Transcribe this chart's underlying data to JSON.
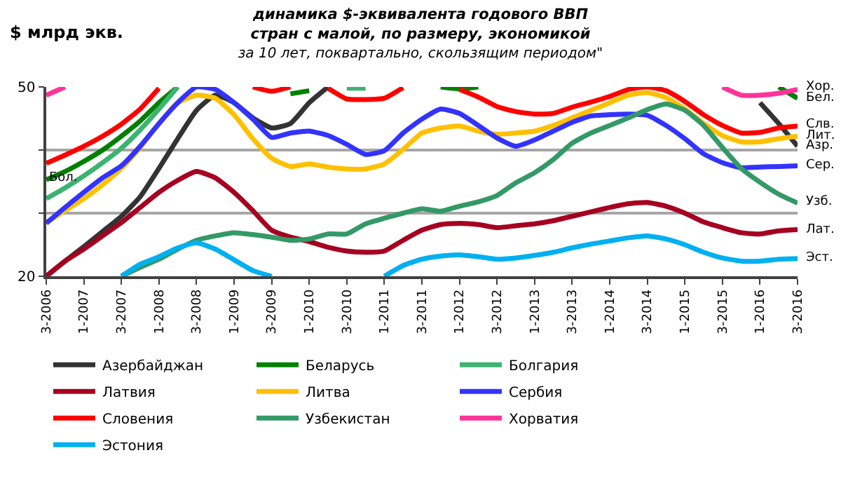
{
  "chart_data": {
    "type": "line",
    "title": "динамика $-эквивалента годового ВВП\nстран с малой, по размеру, экономикой",
    "subtitle": "за 10 лет, поквартально, скользящим периодом\"",
    "ylabel": "$ млрд экв.",
    "categories": [
      "3-2006",
      null,
      "1-2007",
      null,
      "3-2007",
      null,
      "1-2008",
      null,
      "3-2008",
      null,
      "1-2009",
      null,
      "3-2009",
      null,
      "1-2010",
      null,
      "3-2010",
      null,
      "1-2011",
      null,
      "3-2011",
      null,
      "1-2012",
      null,
      "3-2012",
      null,
      "1-2013",
      null,
      "3-2013",
      null,
      "1-2014",
      null,
      "3-2014",
      null,
      "1-2015",
      null,
      "3-2015",
      null,
      "1-2016",
      null,
      "3-2016"
    ],
    "ylim": [
      20,
      50
    ],
    "yticks": [
      20,
      {
        "value": 30,
        "label": null
      },
      {
        "value": 40,
        "label": null
      },
      50
    ],
    "grid": "y",
    "legend": "bottom",
    "marker": "none",
    "line_style": "solid",
    "series": [
      {
        "name": "Азербайджан",
        "color": "#333333",
        "values": [
          20.0,
          22.4,
          24.7,
          27.1,
          29.5,
          32.6,
          37.1,
          41.8,
          46.3,
          48.7,
          47.5,
          45.1,
          43.5,
          44.2,
          47.5,
          50.0,
          null,
          null,
          null,
          null,
          null,
          null,
          null,
          null,
          null,
          null,
          null,
          null,
          null,
          null,
          null,
          null,
          null,
          null,
          null,
          null,
          null,
          null,
          47.5,
          44.2,
          40.6
        ]
      },
      {
        "name": "Беларусь",
        "color": "#008000",
        "values": [
          35.3,
          36.6,
          38.2,
          40.0,
          42.2,
          44.6,
          47.5,
          50.0,
          null,
          null,
          null,
          null,
          null,
          48.9,
          49.4,
          null,
          null,
          null,
          null,
          null,
          null,
          50.0,
          49.7,
          50.0,
          null,
          null,
          null,
          null,
          null,
          null,
          null,
          null,
          null,
          null,
          null,
          null,
          null,
          null,
          null,
          50.0,
          48.2
        ]
      },
      {
        "name": "Болгария",
        "color": "#3cb371",
        "values": [
          32.3,
          34.0,
          35.9,
          38.0,
          40.3,
          43.2,
          46.5,
          50.0,
          null,
          null,
          null,
          null,
          null,
          null,
          null,
          null,
          49.8,
          49.8,
          null,
          null,
          null,
          null,
          null,
          null,
          null,
          null,
          null,
          null,
          null,
          null,
          null,
          null,
          null,
          null,
          null,
          null,
          null,
          null,
          null,
          null,
          null
        ]
      },
      {
        "name": "Латвия",
        "color": "#a50021",
        "values": [
          20.0,
          22.4,
          24.3,
          26.4,
          28.5,
          30.9,
          33.3,
          35.2,
          36.6,
          35.6,
          33.3,
          30.4,
          27.3,
          26.2,
          25.5,
          24.6,
          24.0,
          23.8,
          24.0,
          25.7,
          27.3,
          28.2,
          28.4,
          28.2,
          27.7,
          28.0,
          28.3,
          28.8,
          29.5,
          30.2,
          30.9,
          31.5,
          31.7,
          31.1,
          30.0,
          28.6,
          27.7,
          26.9,
          26.7,
          27.2,
          27.4
        ]
      },
      {
        "name": "Литва",
        "color": "#ffc000",
        "values": [
          28.5,
          30.4,
          32.3,
          34.5,
          37.1,
          40.4,
          44.2,
          47.5,
          48.7,
          48.2,
          45.6,
          41.8,
          38.7,
          37.4,
          37.8,
          37.3,
          37.0,
          37.0,
          37.8,
          40.1,
          42.7,
          43.5,
          43.8,
          43.0,
          42.5,
          42.7,
          43.0,
          43.9,
          45.1,
          46.3,
          47.5,
          48.7,
          49.1,
          48.3,
          46.5,
          44.2,
          42.3,
          41.3,
          41.3,
          41.8,
          42.2
        ]
      },
      {
        "name": "Сербия",
        "color": "#3333ff",
        "values": [
          28.4,
          30.9,
          33.3,
          35.6,
          37.5,
          40.6,
          44.2,
          47.5,
          50.0,
          49.6,
          47.5,
          44.9,
          42.0,
          42.7,
          43.0,
          42.3,
          40.9,
          39.3,
          39.9,
          42.7,
          44.9,
          46.5,
          45.8,
          43.9,
          41.9,
          40.6,
          41.6,
          43.0,
          44.4,
          45.4,
          45.6,
          45.7,
          45.5,
          43.9,
          41.8,
          39.4,
          38.0,
          37.2,
          37.3,
          37.4,
          37.5
        ]
      },
      {
        "name": "Словения",
        "color": "#ff0000",
        "values": [
          37.9,
          39.2,
          40.6,
          42.2,
          44.1,
          46.5,
          49.8,
          null,
          null,
          null,
          null,
          50.0,
          49.3,
          50.0,
          null,
          49.8,
          48.1,
          48.0,
          48.2,
          49.9,
          null,
          null,
          49.6,
          48.4,
          46.9,
          46.1,
          45.7,
          45.8,
          46.8,
          47.6,
          48.5,
          49.6,
          50.0,
          49.4,
          47.7,
          45.6,
          43.9,
          42.7,
          42.8,
          43.5,
          43.8
        ]
      },
      {
        "name": "Узбекистан",
        "color": "#339966",
        "values": [
          null,
          null,
          null,
          null,
          20.0,
          21.4,
          22.7,
          24.3,
          25.7,
          26.4,
          26.9,
          26.6,
          26.2,
          25.7,
          25.9,
          26.7,
          26.7,
          28.3,
          29.2,
          30.0,
          30.7,
          30.3,
          31.1,
          31.8,
          32.8,
          34.8,
          36.4,
          38.5,
          41.1,
          42.7,
          43.9,
          45.1,
          46.4,
          47.3,
          46.3,
          43.9,
          40.4,
          37.1,
          34.9,
          33.0,
          31.6
        ]
      },
      {
        "name": "Хорватия",
        "color": "#ff3399",
        "values": [
          48.7,
          50.0,
          null,
          null,
          null,
          null,
          null,
          null,
          null,
          null,
          null,
          null,
          null,
          null,
          null,
          null,
          null,
          null,
          null,
          null,
          null,
          null,
          null,
          null,
          null,
          null,
          null,
          null,
          null,
          null,
          null,
          null,
          null,
          null,
          null,
          null,
          50.0,
          48.7,
          48.7,
          49.0,
          49.6
        ]
      },
      {
        "name": "Эстония",
        "color": "#00b0f0",
        "values": [
          null,
          null,
          null,
          null,
          20.0,
          21.9,
          23.1,
          24.5,
          25.3,
          24.3,
          22.6,
          20.9,
          20.0,
          null,
          null,
          null,
          null,
          null,
          20.0,
          21.7,
          22.7,
          23.2,
          23.4,
          23.1,
          22.7,
          22.9,
          23.3,
          23.8,
          24.5,
          25.1,
          25.6,
          26.1,
          26.4,
          25.9,
          25.0,
          23.8,
          22.9,
          22.4,
          22.4,
          22.7,
          22.8
        ]
      }
    ],
    "annotations": [
      {
        "text": "Хор.",
        "x": "3-2016",
        "y": 50.0
      },
      {
        "text": "Бел.",
        "x": "3-2016",
        "y": 48.2
      },
      {
        "text": "Слв.",
        "x": "3-2016",
        "y": 44.0
      },
      {
        "text": "Лит.",
        "x": "3-2016",
        "y": 42.3
      },
      {
        "text": "Азр.",
        "x": "3-2016",
        "y": 40.7
      },
      {
        "text": "Сер.",
        "x": "3-2016",
        "y": 37.6
      },
      {
        "text": "Узб.",
        "x": "3-2016",
        "y": 31.8
      },
      {
        "text": "Лат.",
        "x": "3-2016",
        "y": 27.4
      },
      {
        "text": "Эст.",
        "x": "3-2016",
        "y": 22.9
      },
      {
        "text": "Бол.",
        "x": "3-2006",
        "y": 33.9
      }
    ]
  }
}
